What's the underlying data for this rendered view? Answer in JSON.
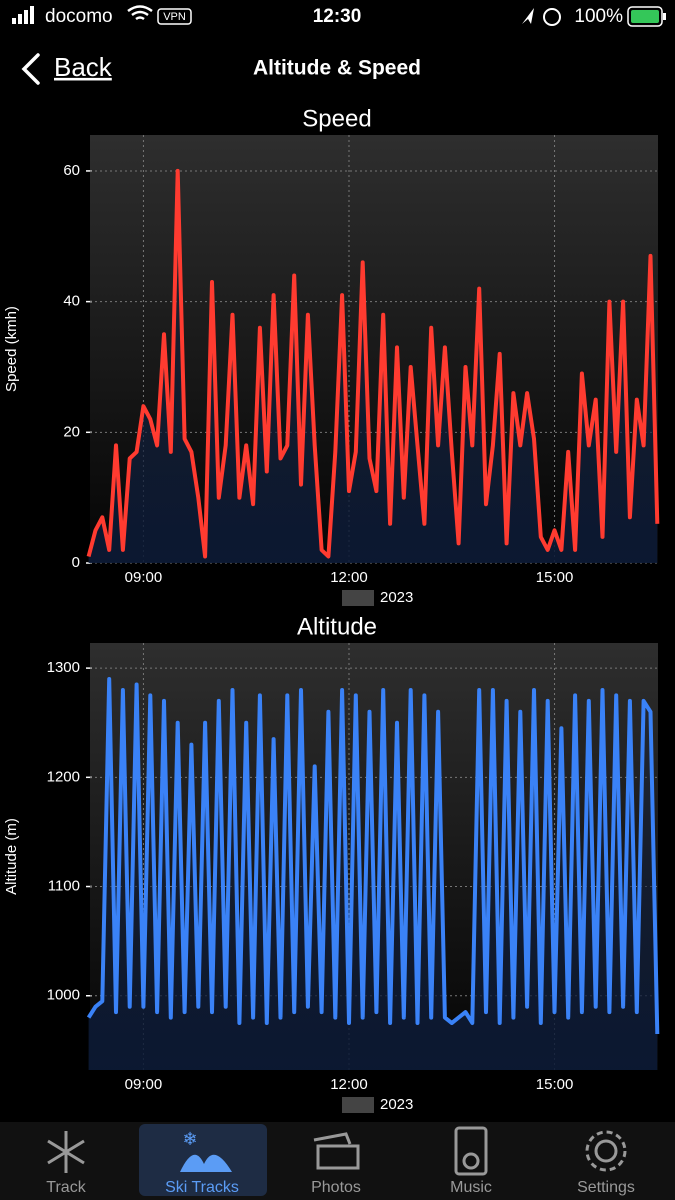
{
  "status_bar": {
    "carrier": "docomo",
    "vpn": "VPN",
    "time": "12:30",
    "battery": "100%"
  },
  "nav": {
    "back": "Back",
    "title": "Altitude & Speed"
  },
  "chart_data": [
    {
      "type": "line",
      "title": "Speed",
      "y_label": "Speed (kmh)",
      "x_label": "2023",
      "color": "#ff3b30",
      "x": [
        8.2,
        8.3,
        8.4,
        8.5,
        8.6,
        8.7,
        8.8,
        8.9,
        9.0,
        9.1,
        9.2,
        9.3,
        9.4,
        9.5,
        9.6,
        9.7,
        9.8,
        9.9,
        10.0,
        10.1,
        10.2,
        10.3,
        10.4,
        10.5,
        10.6,
        10.7,
        10.8,
        10.9,
        11.0,
        11.1,
        11.2,
        11.3,
        11.4,
        11.5,
        11.6,
        11.7,
        11.8,
        11.9,
        12.0,
        12.1,
        12.2,
        12.3,
        12.4,
        12.5,
        12.6,
        12.7,
        12.8,
        12.9,
        13.0,
        13.1,
        13.2,
        13.3,
        13.4,
        13.5,
        13.6,
        13.7,
        13.8,
        13.9,
        14.0,
        14.1,
        14.2,
        14.3,
        14.4,
        14.5,
        14.6,
        14.7,
        14.8,
        14.9,
        15.0,
        15.1,
        15.2,
        15.3,
        15.4,
        15.5,
        15.6,
        15.7,
        15.8,
        15.9,
        16.0,
        16.1,
        16.2,
        16.3,
        16.4,
        16.5
      ],
      "values": [
        1,
        5,
        7,
        2,
        18,
        2,
        16,
        17,
        24,
        22,
        18,
        35,
        17,
        60,
        19,
        17,
        10,
        1,
        43,
        10,
        18,
        38,
        10,
        18,
        9,
        36,
        14,
        41,
        16,
        18,
        44,
        12,
        38,
        18,
        2,
        1,
        17,
        41,
        11,
        17,
        46,
        16,
        11,
        38,
        6,
        33,
        10,
        30,
        18,
        6,
        36,
        18,
        33,
        17,
        3,
        30,
        18,
        42,
        9,
        18,
        32,
        3,
        26,
        18,
        26,
        19,
        4,
        2,
        5,
        2,
        17,
        2,
        29,
        18,
        25,
        4,
        40,
        17,
        40,
        7,
        25,
        18,
        47,
        6
      ],
      "xlim": [
        8.22,
        16.51
      ],
      "xticks": [
        {
          "value": 9,
          "label": "09:00"
        },
        {
          "value": 12,
          "label": "12:00"
        },
        {
          "value": 15,
          "label": "15:00"
        }
      ],
      "ylim": [
        0,
        65.5
      ],
      "yticks": [
        0,
        20,
        40,
        60
      ],
      "grid": true
    },
    {
      "type": "line",
      "title": "Altitude",
      "y_label": "Altitude (m)",
      "x_label": "2023",
      "color": "#3a82f7",
      "x": [
        8.2,
        8.3,
        8.4,
        8.5,
        8.6,
        8.7,
        8.8,
        8.9,
        9.0,
        9.1,
        9.2,
        9.3,
        9.4,
        9.5,
        9.6,
        9.7,
        9.8,
        9.9,
        10.0,
        10.1,
        10.2,
        10.3,
        10.4,
        10.5,
        10.6,
        10.7,
        10.8,
        10.9,
        11.0,
        11.1,
        11.2,
        11.3,
        11.4,
        11.5,
        11.6,
        11.7,
        11.8,
        11.9,
        12.0,
        12.1,
        12.2,
        12.3,
        12.4,
        12.5,
        12.6,
        12.7,
        12.8,
        12.9,
        13.0,
        13.1,
        13.2,
        13.3,
        13.4,
        13.5,
        13.6,
        13.7,
        13.8,
        13.9,
        14.0,
        14.1,
        14.2,
        14.3,
        14.4,
        14.5,
        14.6,
        14.7,
        14.8,
        14.9,
        15.0,
        15.1,
        15.2,
        15.3,
        15.4,
        15.5,
        15.6,
        15.7,
        15.8,
        15.9,
        16.0,
        16.1,
        16.2,
        16.3,
        16.4,
        16.5
      ],
      "values": [
        980,
        990,
        995,
        1290,
        985,
        1280,
        990,
        1285,
        990,
        1275,
        985,
        1270,
        980,
        1250,
        985,
        1230,
        990,
        1250,
        985,
        1270,
        990,
        1280,
        975,
        1250,
        980,
        1275,
        975,
        1235,
        980,
        1275,
        985,
        1280,
        990,
        1210,
        985,
        1260,
        980,
        1280,
        975,
        1275,
        980,
        1260,
        985,
        1280,
        975,
        1250,
        980,
        1280,
        975,
        1275,
        980,
        1260,
        980,
        975,
        980,
        985,
        975,
        1280,
        985,
        1280,
        975,
        1270,
        980,
        1260,
        990,
        1280,
        975,
        1270,
        985,
        1245,
        980,
        1275,
        985,
        1270,
        990,
        1280,
        985,
        1275,
        990,
        1270,
        985,
        1270,
        1260,
        965
      ],
      "xlim": [
        8.22,
        16.51
      ],
      "xticks": [
        {
          "value": 9,
          "label": "09:00"
        },
        {
          "value": 12,
          "label": "12:00"
        },
        {
          "value": 15,
          "label": "15:00"
        }
      ],
      "ylim": [
        932,
        1323
      ],
      "yticks": [
        1000,
        1100,
        1200,
        1300
      ],
      "grid": true
    }
  ],
  "tabs": [
    "Track",
    "Ski Tracks",
    "Photos",
    "Music",
    "Settings"
  ]
}
